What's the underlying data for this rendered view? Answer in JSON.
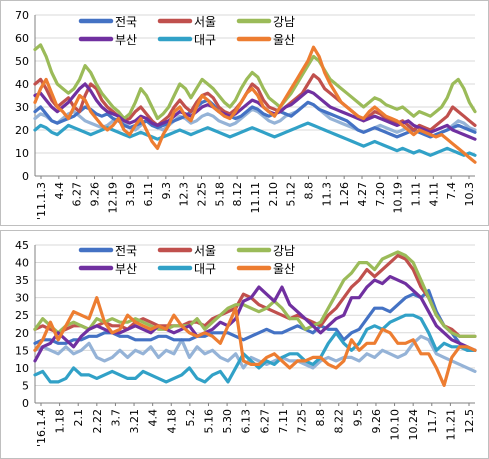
{
  "chart_data": [
    {
      "type": "line",
      "ylim": [
        0,
        70
      ],
      "y_ticks": [
        "0",
        "10",
        "20",
        "30",
        "40",
        "50",
        "60",
        "70"
      ],
      "x_ticks": [
        "'11.1.3",
        "4.4",
        "6.27",
        "9.26",
        "12.19",
        "3.19",
        "6.11",
        "9.3",
        "12.3",
        "2.25",
        "5.18",
        "8.12",
        "11.11",
        "2.10",
        "5.12",
        "8.8",
        "11.3",
        "1.26",
        "4.27",
        "7.20",
        "10.19",
        "1.11",
        "4.11",
        "7.4",
        "10.3"
      ],
      "grid": true,
      "legend_position": "top-left",
      "series": [
        {
          "name": "전국",
          "color": "#4472c4",
          "values": [
            28,
            30,
            27,
            24,
            23,
            24,
            25,
            26,
            28,
            30,
            29,
            27,
            26,
            27,
            25,
            24,
            22,
            21,
            22,
            23,
            24,
            22,
            21,
            22,
            23,
            24,
            25,
            26,
            28,
            30,
            32,
            33,
            31,
            28,
            27,
            26,
            25,
            26,
            28,
            30,
            29,
            27,
            26,
            27,
            28,
            27,
            26,
            28,
            30,
            32,
            31,
            29,
            28,
            27,
            26,
            25,
            24,
            22,
            20,
            19,
            20,
            21,
            20,
            19,
            18,
            17,
            18,
            19,
            20,
            19,
            18,
            17,
            18,
            19,
            20,
            21,
            22,
            21,
            20,
            19
          ]
        },
        {
          "name": "서울",
          "color": "#c0504d",
          "values": [
            40,
            42,
            38,
            33,
            30,
            32,
            34,
            30,
            28,
            35,
            40,
            38,
            33,
            30,
            28,
            26,
            24,
            25,
            28,
            30,
            27,
            24,
            22,
            24,
            26,
            30,
            33,
            30,
            28,
            32,
            35,
            36,
            34,
            30,
            28,
            27,
            29,
            32,
            36,
            40,
            38,
            33,
            30,
            29,
            28,
            30,
            32,
            34,
            36,
            40,
            44,
            42,
            38,
            36,
            34,
            32,
            30,
            28,
            26,
            24,
            26,
            28,
            27,
            25,
            24,
            23,
            24,
            22,
            20,
            22,
            21,
            20,
            22,
            24,
            26,
            30,
            28,
            26,
            24,
            22
          ]
        },
        {
          "name": "강남",
          "color": "#9bbb59",
          "values": [
            55,
            57,
            52,
            45,
            40,
            38,
            36,
            38,
            42,
            48,
            45,
            40,
            36,
            33,
            30,
            28,
            25,
            27,
            32,
            38,
            35,
            30,
            25,
            27,
            30,
            35,
            40,
            38,
            34,
            38,
            42,
            40,
            38,
            35,
            32,
            30,
            33,
            38,
            42,
            45,
            43,
            38,
            34,
            32,
            30,
            33,
            36,
            40,
            44,
            48,
            52,
            50,
            46,
            42,
            40,
            38,
            36,
            34,
            32,
            30,
            32,
            34,
            33,
            31,
            30,
            29,
            30,
            28,
            26,
            28,
            27,
            26,
            28,
            30,
            34,
            40,
            42,
            38,
            32,
            28
          ]
        },
        {
          "name": "부산",
          "color": "#7030a0",
          "values": [
            35,
            36,
            33,
            30,
            28,
            30,
            32,
            35,
            38,
            40,
            37,
            33,
            30,
            28,
            27,
            26,
            24,
            23,
            24,
            26,
            25,
            23,
            22,
            23,
            24,
            26,
            28,
            27,
            26,
            28,
            30,
            31,
            30,
            28,
            27,
            26,
            27,
            29,
            31,
            33,
            32,
            30,
            28,
            27,
            28,
            30,
            31,
            33,
            35,
            37,
            36,
            34,
            32,
            30,
            29,
            28,
            27,
            26,
            25,
            24,
            25,
            26,
            25,
            24,
            23,
            22,
            23,
            24,
            22,
            21,
            20,
            19,
            20,
            21,
            22,
            20,
            19,
            18,
            17,
            16
          ]
        },
        {
          "name": "대구",
          "color": "#31a1c7",
          "values": [
            20,
            22,
            21,
            19,
            18,
            20,
            22,
            21,
            20,
            19,
            18,
            19,
            20,
            21,
            20,
            19,
            18,
            17,
            18,
            19,
            18,
            17,
            16,
            17,
            18,
            19,
            20,
            19,
            18,
            19,
            20,
            21,
            20,
            19,
            18,
            17,
            18,
            19,
            20,
            21,
            20,
            19,
            18,
            17,
            18,
            19,
            20,
            21,
            22,
            23,
            22,
            21,
            20,
            19,
            18,
            17,
            16,
            15,
            14,
            13,
            14,
            15,
            14,
            13,
            12,
            11,
            12,
            11,
            10,
            11,
            10,
            9,
            10,
            11,
            12,
            11,
            10,
            9,
            10,
            9
          ]
        },
        {
          "name": "울산",
          "color": "#ed7d31",
          "values": [
            32,
            38,
            42,
            36,
            30,
            28,
            25,
            30,
            35,
            33,
            28,
            25,
            22,
            20,
            22,
            25,
            20,
            18,
            22,
            25,
            20,
            15,
            12,
            18,
            22,
            28,
            30,
            26,
            24,
            30,
            35,
            33,
            30,
            28,
            26,
            25,
            28,
            32,
            36,
            38,
            35,
            30,
            28,
            26,
            30,
            34,
            38,
            42,
            46,
            50,
            56,
            52,
            45,
            40,
            36,
            32,
            30,
            28,
            26,
            25,
            28,
            30,
            28,
            26,
            25,
            24,
            22,
            20,
            18,
            20,
            19,
            18,
            17,
            18,
            16,
            14,
            12,
            10,
            8,
            6
          ]
        },
        {
          "name": "",
          "color": "#95b3d7",
          "values": [
            25,
            27,
            26,
            24,
            23,
            25,
            27,
            28,
            26,
            24,
            23,
            22,
            21,
            22,
            24,
            25,
            23,
            21,
            20,
            22,
            24,
            23,
            21,
            20,
            22,
            24,
            26,
            25,
            23,
            24,
            26,
            27,
            26,
            24,
            23,
            22,
            23,
            25,
            27,
            29,
            28,
            26,
            24,
            23,
            24,
            26,
            27,
            28,
            30,
            32,
            31,
            29,
            27,
            25,
            24,
            23,
            22,
            21,
            20,
            19,
            20,
            21,
            22,
            21,
            20,
            19,
            20,
            21,
            20,
            19,
            18,
            17,
            18,
            19,
            20,
            22,
            24,
            23,
            21,
            20
          ]
        }
      ]
    },
    {
      "type": "line",
      "ylim": [
        0,
        45
      ],
      "y_ticks": [
        "0",
        "5",
        "10",
        "15",
        "20",
        "25",
        "30",
        "35",
        "40",
        "45"
      ],
      "x_ticks": [
        "'16.1.4",
        "1.18",
        "2.1",
        "2.22",
        "3.7",
        "3.21",
        "4.4",
        "4.18",
        "5.2",
        "5.16",
        "5.30",
        "6.13",
        "6.27",
        "7.11",
        "7.25",
        "8.8",
        "8.22",
        "9.5",
        "9.26",
        "10.10",
        "10.24",
        "11.7",
        "11.21",
        "12.5"
      ],
      "grid": true,
      "legend_position": "top-left",
      "series": [
        {
          "name": "전국",
          "color": "#4472c4",
          "values": [
            17,
            18,
            18,
            17,
            17,
            18,
            18,
            19,
            19,
            20,
            20,
            19,
            19,
            18,
            18,
            18,
            19,
            19,
            18,
            18,
            18,
            19,
            19,
            20,
            20,
            20,
            19,
            18,
            19,
            20,
            21,
            20,
            20,
            21,
            22,
            21,
            20,
            22,
            21,
            21,
            18,
            20,
            21,
            24,
            27,
            27,
            26,
            28,
            30,
            31,
            30,
            32,
            26,
            22,
            20,
            17,
            15,
            15
          ]
        },
        {
          "name": "서울",
          "color": "#c0504d",
          "values": [
            21,
            22,
            21,
            20,
            21,
            22,
            22,
            21,
            22,
            23,
            22,
            22,
            21,
            23,
            24,
            23,
            22,
            22,
            22,
            22,
            23,
            23,
            22,
            24,
            25,
            26,
            27,
            31,
            30,
            28,
            27,
            26,
            25,
            24,
            25,
            24,
            23,
            22,
            25,
            27,
            30,
            33,
            35,
            38,
            36,
            38,
            40,
            42,
            41,
            38,
            33,
            30,
            25,
            22,
            21,
            19,
            19,
            19
          ]
        },
        {
          "name": "강남",
          "color": "#9bbb59",
          "values": [
            21,
            24,
            22,
            20,
            22,
            23,
            22,
            21,
            24,
            23,
            24,
            23,
            23,
            24,
            23,
            22,
            21,
            21,
            22,
            22,
            22,
            24,
            21,
            23,
            25,
            27,
            28,
            28,
            27,
            26,
            27,
            29,
            27,
            24,
            24,
            21,
            22,
            23,
            27,
            31,
            35,
            37,
            40,
            40,
            38,
            41,
            42,
            43,
            42,
            40,
            35,
            30,
            25,
            22,
            20,
            19,
            19,
            19
          ]
        },
        {
          "name": "부산",
          "color": "#7030a0",
          "values": [
            12,
            16,
            17,
            20,
            18,
            16,
            19,
            21,
            22,
            21,
            20,
            20,
            21,
            22,
            21,
            20,
            22,
            21,
            20,
            21,
            22,
            19,
            20,
            21,
            23,
            22,
            24,
            29,
            30,
            33,
            31,
            29,
            33,
            28,
            26,
            24,
            22,
            20,
            22,
            24,
            25,
            30,
            30,
            33,
            35,
            34,
            36,
            35,
            34,
            32,
            30,
            26,
            22,
            20,
            18,
            17,
            16,
            15
          ]
        },
        {
          "name": "대구",
          "color": "#31a1c7",
          "values": [
            8,
            9,
            6,
            6,
            7,
            10,
            8,
            8,
            7,
            8,
            9,
            8,
            7,
            7,
            9,
            8,
            7,
            6,
            7,
            8,
            10,
            7,
            6,
            8,
            9,
            6,
            10,
            14,
            12,
            10,
            12,
            11,
            13,
            14,
            14,
            12,
            11,
            13,
            17,
            20,
            17,
            15,
            17,
            21,
            22,
            21,
            23,
            24,
            25,
            25,
            24,
            20,
            15,
            17,
            16,
            16,
            15,
            15
          ]
        },
        {
          "name": "울산",
          "color": "#ed7d31",
          "values": [
            15,
            18,
            23,
            18,
            22,
            26,
            25,
            24,
            30,
            23,
            20,
            21,
            25,
            23,
            22,
            21,
            22,
            21,
            25,
            22,
            20,
            19,
            20,
            19,
            17,
            22,
            27,
            12,
            11,
            11,
            13,
            14,
            12,
            10,
            12,
            12,
            13,
            13,
            11,
            10,
            12,
            18,
            15,
            17,
            17,
            21,
            20,
            17,
            17,
            18,
            14,
            14,
            10,
            5,
            13,
            16,
            16,
            15
          ]
        },
        {
          "name": "",
          "color": "#95b3d7",
          "values": [
            15,
            16,
            15,
            14,
            16,
            14,
            15,
            17,
            13,
            12,
            13,
            15,
            13,
            15,
            14,
            16,
            13,
            15,
            14,
            18,
            13,
            16,
            14,
            15,
            13,
            12,
            14,
            10,
            13,
            12,
            11,
            12,
            13,
            12,
            12,
            11,
            10,
            12,
            13,
            12,
            13,
            13,
            12,
            14,
            13,
            15,
            14,
            13,
            14,
            17,
            19,
            18,
            14,
            13,
            12,
            11,
            10,
            9
          ]
        }
      ]
    }
  ]
}
